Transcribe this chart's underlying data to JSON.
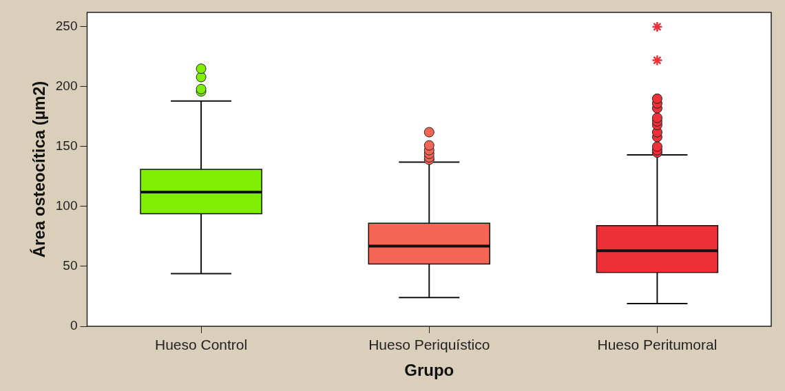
{
  "chart_data": {
    "type": "box",
    "xlabel": "Grupo",
    "ylabel": "Área osteocítica (µm2)",
    "categories": [
      "Hueso Control",
      "Hueso Periquístico",
      "Hueso Peritumoral"
    ],
    "colors": [
      "#80ee00",
      "#f56555",
      "#ee3038"
    ],
    "boxes": [
      {
        "low": 44,
        "q1": 94,
        "median": 112,
        "q3": 131,
        "high": 188,
        "outliers": [
          196,
          198,
          208,
          215
        ]
      },
      {
        "low": 24,
        "q1": 52,
        "median": 67,
        "q3": 86,
        "high": 137,
        "outliers": [
          139,
          141,
          144,
          147,
          151,
          162
        ]
      },
      {
        "low": 19,
        "q1": 45,
        "median": 63,
        "q3": 84,
        "high": 143,
        "outliers": [
          145,
          147,
          150,
          158,
          162,
          168,
          171,
          174,
          182,
          186,
          190
        ]
      }
    ],
    "series": [
      {
        "type": "scatter",
        "marker": "cross",
        "color": "#ee3038",
        "x": [
          "Hueso Peritumoral",
          "Hueso Peritumoral"
        ],
        "values": [
          222,
          250
        ]
      }
    ],
    "ylim": [
      0,
      262
    ],
    "yticks": [
      0,
      50,
      100,
      150,
      200,
      250
    ],
    "grid": false,
    "legend": false
  }
}
